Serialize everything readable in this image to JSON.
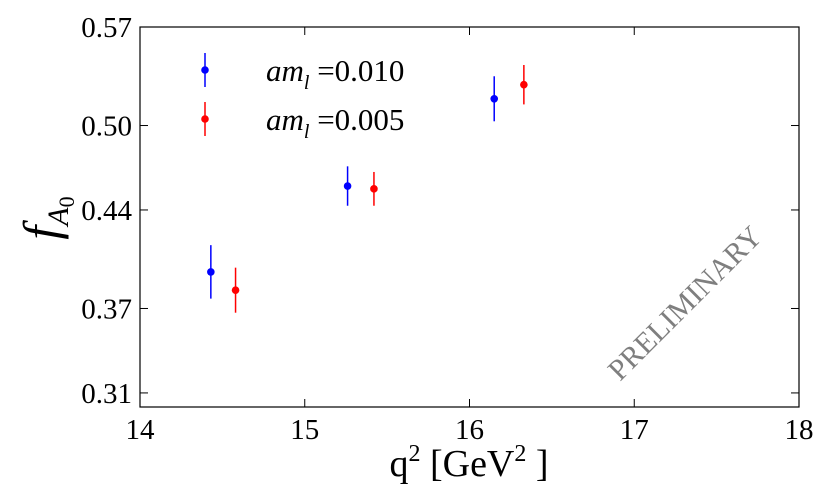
{
  "chart_data": {
    "type": "scatter",
    "xlabel": {
      "base": "q",
      "sup": "2",
      "mid": " [GeV",
      "sup2": "2",
      "end": " ]"
    },
    "ylabel": {
      "base": "f",
      "sub": "A",
      "subsub": "0"
    },
    "xlim": [
      14,
      18
    ],
    "ylim": [
      0.3,
      0.57
    ],
    "xticks": [
      14,
      15,
      16,
      17,
      18
    ],
    "xtick_labels": [
      "14",
      "15",
      "16",
      "17",
      "18"
    ],
    "yticks": [
      0.31,
      0.37,
      0.44,
      0.5,
      0.57
    ],
    "ytick_labels": [
      "0.31",
      "0.37",
      "0.44",
      "0.50",
      "0.57"
    ],
    "grid": false,
    "legend_position": "top-left",
    "series": [
      {
        "legend": {
          "italic": "am",
          "sub": "l",
          "value": " =0.010"
        },
        "color": "#0000ff",
        "points": [
          {
            "x": 14.43,
            "y": 0.396,
            "err": 0.019
          },
          {
            "x": 15.26,
            "y": 0.457,
            "err": 0.014
          },
          {
            "x": 16.15,
            "y": 0.519,
            "err": 0.016
          }
        ]
      },
      {
        "legend": {
          "italic": "am",
          "sub": "l",
          "value": " =0.005"
        },
        "color": "#ff0000",
        "points": [
          {
            "x": 14.58,
            "y": 0.383,
            "err": 0.016
          },
          {
            "x": 15.42,
            "y": 0.455,
            "err": 0.012
          },
          {
            "x": 16.33,
            "y": 0.529,
            "err": 0.014
          }
        ]
      }
    ],
    "annotation": "PRELIMINARY"
  }
}
